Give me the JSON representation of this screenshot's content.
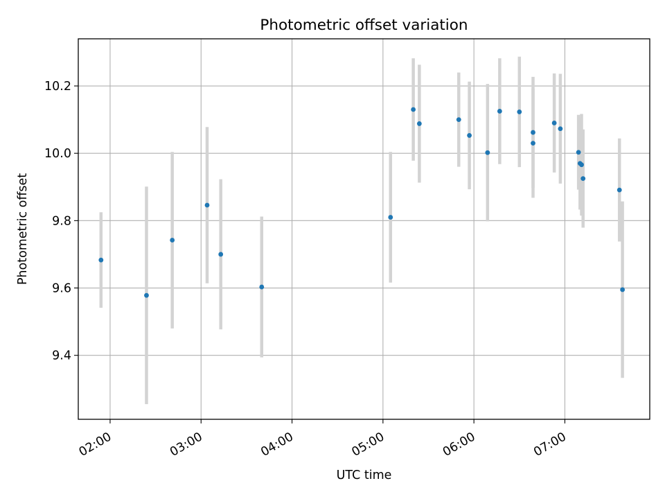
{
  "chart_data": {
    "type": "scatter",
    "title": "Photometric offset variation",
    "xlabel": "UTC time",
    "ylabel": "Photometric offset",
    "x_unit": "UTC time of day (HH:MM)",
    "xlim": [
      "01:39",
      "07:56"
    ],
    "ylim": [
      9.21,
      10.34
    ],
    "x_ticks": [
      "02:00",
      "03:00",
      "04:00",
      "05:00",
      "06:00",
      "07:00"
    ],
    "y_ticks": [
      9.4,
      9.6,
      9.8,
      10.0,
      10.2
    ],
    "y_tick_labels": [
      "9.4",
      "9.6",
      "9.8",
      "10.0",
      "10.2"
    ],
    "grid": true,
    "error_bars": true,
    "colors": {
      "points": "#1f77b4",
      "error_bars": "#d3d3d3",
      "grid": "#b0b0b0"
    },
    "series": [
      {
        "points": [
          {
            "x": "01:54",
            "y": 9.683,
            "err": 0.142
          },
          {
            "x": "02:24",
            "y": 9.578,
            "err": 0.323
          },
          {
            "x": "02:41",
            "y": 9.742,
            "err": 0.262
          },
          {
            "x": "03:04",
            "y": 9.846,
            "err": 0.232
          },
          {
            "x": "03:13",
            "y": 9.7,
            "err": 0.223
          },
          {
            "x": "03:40",
            "y": 9.603,
            "err": 0.209
          },
          {
            "x": "05:05",
            "y": 9.81,
            "err": 0.194
          },
          {
            "x": "05:20",
            "y": 10.13,
            "err": 0.152
          },
          {
            "x": "05:24",
            "y": 10.088,
            "err": 0.175
          },
          {
            "x": "05:50",
            "y": 10.1,
            "err": 0.14
          },
          {
            "x": "05:57",
            "y": 10.053,
            "err": 0.16
          },
          {
            "x": "06:09",
            "y": 10.002,
            "err": 0.204
          },
          {
            "x": "06:17",
            "y": 10.125,
            "err": 0.157
          },
          {
            "x": "06:30",
            "y": 10.123,
            "err": 0.164
          },
          {
            "x": "06:39",
            "y": 10.062,
            "err": 0.165
          },
          {
            "x": "06:39",
            "y": 10.03,
            "err": 0.162
          },
          {
            "x": "06:53",
            "y": 10.09,
            "err": 0.147
          },
          {
            "x": "06:57",
            "y": 10.073,
            "err": 0.163
          },
          {
            "x": "07:09",
            "y": 10.003,
            "err": 0.111
          },
          {
            "x": "07:10",
            "y": 9.97,
            "err": 0.137
          },
          {
            "x": "07:11",
            "y": 9.966,
            "err": 0.151
          },
          {
            "x": "07:12",
            "y": 9.925,
            "err": 0.146
          },
          {
            "x": "07:36",
            "y": 9.891,
            "err": 0.153
          },
          {
            "x": "07:38",
            "y": 9.595,
            "err": 0.262
          }
        ]
      }
    ]
  }
}
